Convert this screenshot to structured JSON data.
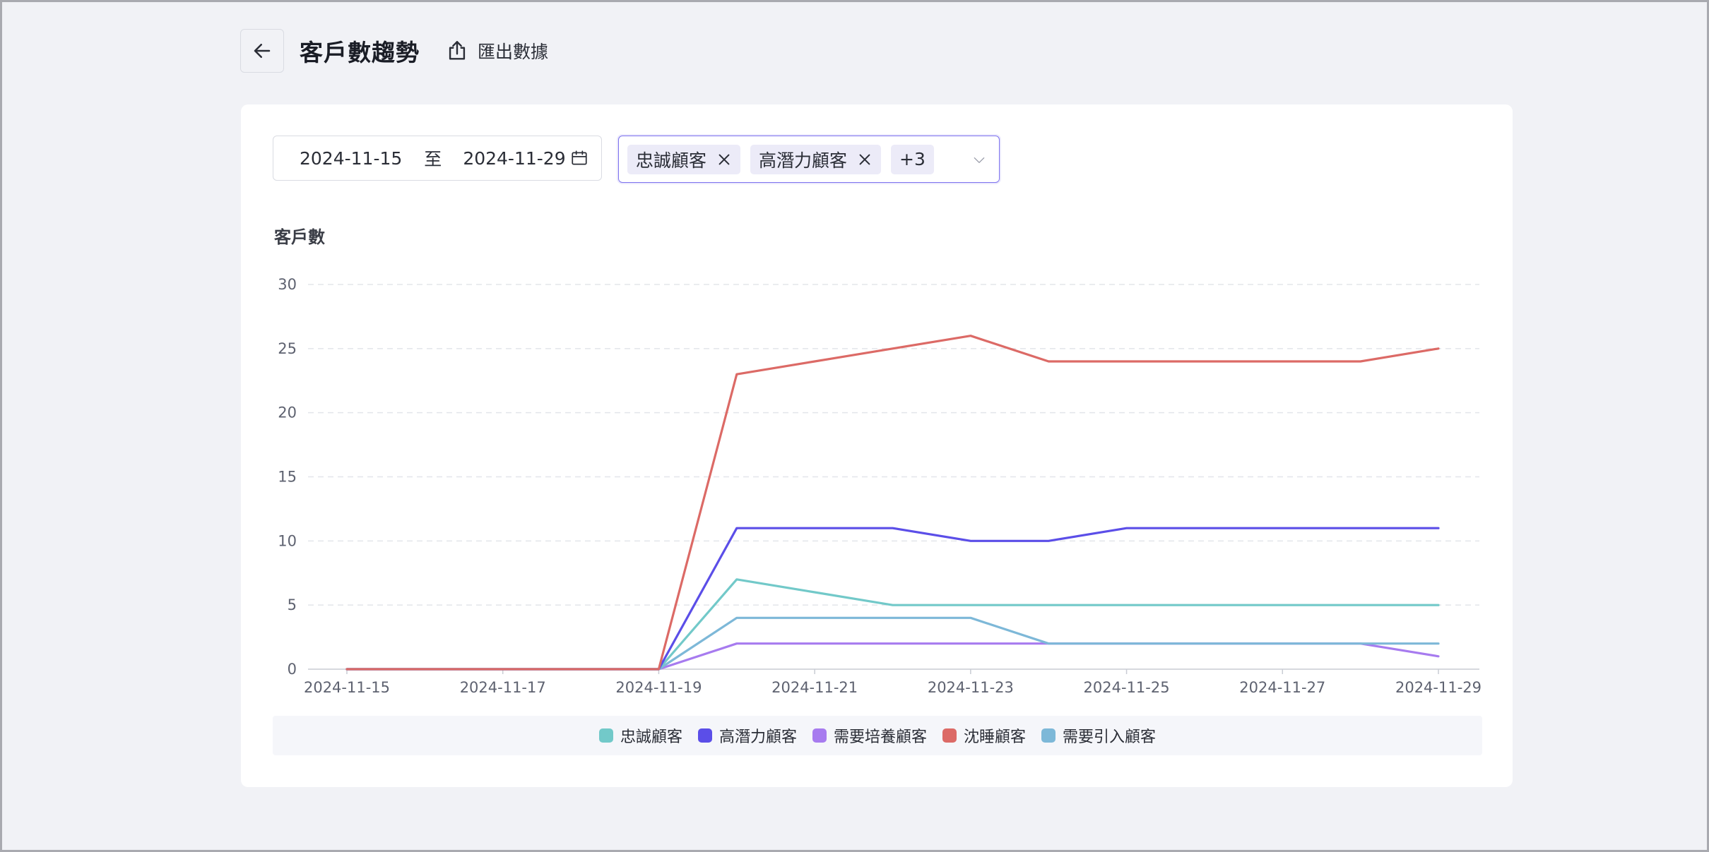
{
  "header": {
    "title": "客戶數趨勢",
    "export_label": "匯出數據"
  },
  "filters": {
    "date_start": "2024-11-15",
    "date_separator": "至",
    "date_end": "2024-11-29",
    "selected_tags": [
      "忠誠顧客",
      "高潛力顧客"
    ],
    "more_count": "+3"
  },
  "icons": {
    "back": "arrow-left-icon",
    "export": "export-icon",
    "calendar": "calendar-icon",
    "tag_close": "close-icon",
    "dropdown": "chevron-down-icon"
  },
  "chart_data": {
    "type": "line",
    "ylabel": "客戶數",
    "ylim": [
      0,
      30
    ],
    "yticks": [
      "0",
      "5",
      "10",
      "15",
      "20",
      "25",
      "30"
    ],
    "x": [
      "2024-11-15",
      "2024-11-16",
      "2024-11-17",
      "2024-11-18",
      "2024-11-19",
      "2024-11-20",
      "2024-11-21",
      "2024-11-22",
      "2024-11-23",
      "2024-11-24",
      "2024-11-25",
      "2024-11-26",
      "2024-11-27",
      "2024-11-28",
      "2024-11-29"
    ],
    "xticks": [
      "2024-11-15",
      "2024-11-17",
      "2024-11-19",
      "2024-11-21",
      "2024-11-23",
      "2024-11-25",
      "2024-11-27",
      "2024-11-29"
    ],
    "grid": true,
    "legend_position": "bottom",
    "series": [
      {
        "name": "忠誠顧客",
        "color": "#72c9c9",
        "values": [
          0,
          0,
          0,
          0,
          0,
          7,
          6,
          5,
          5,
          5,
          5,
          5,
          5,
          5,
          5
        ]
      },
      {
        "name": "高潛力顧客",
        "color": "#5b4ee8",
        "values": [
          0,
          0,
          0,
          0,
          0,
          11,
          11,
          11,
          10,
          10,
          11,
          11,
          11,
          11,
          11
        ]
      },
      {
        "name": "需要培養顧客",
        "color": "#a77bef",
        "values": [
          0,
          0,
          0,
          0,
          0,
          2,
          2,
          2,
          2,
          2,
          2,
          2,
          2,
          2,
          1
        ]
      },
      {
        "name": "沈睡顧客",
        "color": "#dc6a66",
        "values": [
          0,
          0,
          0,
          0,
          0,
          23,
          24,
          25,
          26,
          24,
          24,
          24,
          24,
          24,
          25
        ]
      },
      {
        "name": "需要引入顧客",
        "color": "#7db8d8",
        "values": [
          0,
          0,
          0,
          0,
          0,
          4,
          4,
          4,
          4,
          2,
          2,
          2,
          2,
          2,
          2
        ]
      }
    ]
  }
}
